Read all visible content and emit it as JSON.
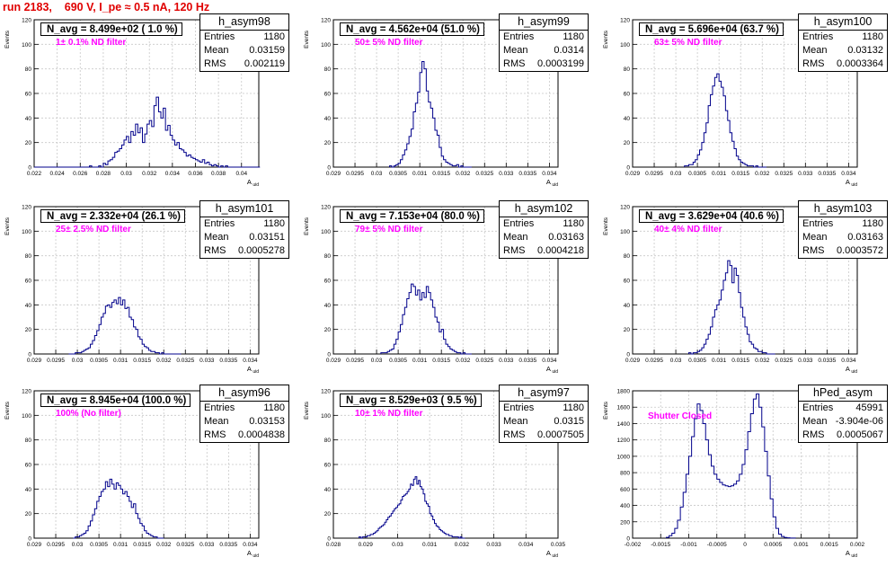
{
  "run_title": "run 2183,    690 V, I_pe ≈ 0.5 nA, 120 Hz",
  "colors": {
    "title": "#e00000",
    "histogram": "#00008b",
    "filter_label": "#ff00ff",
    "grid": "#c8c8c8"
  },
  "chart_data": [
    {
      "type": "histogram",
      "name": "h_asym98",
      "entries": "1180",
      "mean": "0.03159",
      "rms": "0.002119",
      "navg": "N_avg = 8.499e+02 ( 1.0 %)",
      "filter_label": "1± 0.1% ND filter",
      "ylabel": "Events",
      "xlabel": "A_uid",
      "xlim": [
        0.022,
        0.0415
      ],
      "ylim": [
        0,
        120
      ],
      "xticks": [
        "0.022",
        "0.024",
        "0.026",
        "0.028",
        "0.03",
        "0.032",
        "0.034",
        "0.036",
        "0.038",
        "0.04"
      ],
      "yticks": [
        "0",
        "20",
        "40",
        "60",
        "80",
        "100",
        "120"
      ],
      "bins_start": 0.022,
      "bin_width": 0.0002,
      "grid": true,
      "values": [
        0,
        0,
        0,
        0,
        0,
        0,
        0,
        0,
        0,
        0,
        0,
        0,
        0,
        0,
        0,
        0,
        0,
        0,
        0,
        0,
        0,
        0,
        0,
        0,
        1,
        0,
        0,
        0,
        1,
        0,
        3,
        2,
        5,
        6,
        8,
        12,
        13,
        15,
        18,
        22,
        25,
        20,
        29,
        26,
        35,
        28,
        32,
        20,
        27,
        35,
        38,
        33,
        50,
        57,
        45,
        40,
        48,
        30,
        34,
        26,
        22,
        18,
        20,
        15,
        14,
        12,
        9,
        10,
        8,
        7,
        6,
        5,
        4,
        6,
        3,
        4,
        2,
        1,
        2,
        1,
        0,
        1,
        0,
        1,
        0,
        0,
        0,
        0,
        0,
        0,
        0,
        0,
        0,
        0,
        0,
        0,
        0,
        0
      ]
    },
    {
      "type": "histogram",
      "name": "h_asym99",
      "entries": "1180",
      "mean": "0.0314",
      "rms": "0.0003199",
      "navg": "N_avg = 4.562e+04 (51.0 %)",
      "filter_label": "50± 5% ND filter",
      "ylabel": "Events",
      "xlabel": "A_uid",
      "xlim": [
        0.029,
        0.0342
      ],
      "ylim": [
        0,
        120
      ],
      "xticks": [
        "0.029",
        "0.0295",
        "0.03",
        "0.0305",
        "0.031",
        "0.0315",
        "0.032",
        "0.0325",
        "0.033",
        "0.0335",
        "0.034"
      ],
      "yticks": [
        "0",
        "20",
        "40",
        "60",
        "80",
        "100",
        "120"
      ],
      "bins_start": 0.0303,
      "bin_width": 5e-05,
      "grid": true,
      "values": [
        1,
        0,
        1,
        2,
        3,
        6,
        10,
        14,
        19,
        25,
        31,
        45,
        52,
        61,
        77,
        86,
        80,
        62,
        53,
        48,
        40,
        30,
        26,
        16,
        9,
        6,
        4,
        3,
        2,
        1,
        1,
        2,
        0,
        1,
        0,
        0,
        0,
        0
      ]
    },
    {
      "type": "histogram",
      "name": "h_asym100",
      "entries": "1180",
      "mean": "0.03132",
      "rms": "0.0003364",
      "navg": "N_avg = 5.696e+04 (63.7 %)",
      "filter_label": "63± 5% ND filter",
      "ylabel": "Events",
      "xlabel": "A_uid",
      "xlim": [
        0.029,
        0.0342
      ],
      "ylim": [
        0,
        120
      ],
      "xticks": [
        "0.029",
        "0.0295",
        "0.03",
        "0.0305",
        "0.031",
        "0.0315",
        "0.032",
        "0.0325",
        "0.033",
        "0.0335",
        "0.034"
      ],
      "yticks": [
        "0",
        "20",
        "40",
        "60",
        "80",
        "100",
        "120"
      ],
      "bins_start": 0.0302,
      "bin_width": 5e-05,
      "grid": true,
      "values": [
        1,
        1,
        2,
        2,
        4,
        6,
        10,
        14,
        20,
        28,
        36,
        50,
        59,
        66,
        73,
        76,
        70,
        65,
        58,
        46,
        38,
        28,
        21,
        15,
        9,
        6,
        4,
        3,
        2,
        1,
        1,
        1,
        0,
        1,
        0,
        0,
        0,
        0
      ]
    },
    {
      "type": "histogram",
      "name": "h_asym101",
      "entries": "1180",
      "mean": "0.03151",
      "rms": "0.0005278",
      "navg": "N_avg = 2.332e+04 (26.1 %)",
      "filter_label": "25± 2.5% ND filter",
      "ylabel": "Events",
      "xlabel": "A_uid",
      "xlim": [
        0.029,
        0.0342
      ],
      "ylim": [
        0,
        120
      ],
      "xticks": [
        "0.029",
        "0.0295",
        "0.03",
        "0.0305",
        "0.031",
        "0.0315",
        "0.032",
        "0.0325",
        "0.033",
        "0.0335",
        "0.034"
      ],
      "yticks": [
        "0",
        "20",
        "40",
        "60",
        "80",
        "100",
        "120"
      ],
      "bins_start": 0.0298,
      "bin_width": 5e-05,
      "grid": true,
      "values": [
        0,
        0,
        0,
        1,
        1,
        1,
        2,
        3,
        4,
        5,
        8,
        11,
        15,
        19,
        24,
        30,
        33,
        39,
        40,
        38,
        42,
        44,
        41,
        46,
        40,
        44,
        37,
        38,
        30,
        28,
        22,
        20,
        14,
        12,
        8,
        6,
        5,
        3,
        2,
        2,
        1,
        1,
        0,
        1,
        0,
        0,
        0,
        0,
        0,
        0,
        0,
        0
      ]
    },
    {
      "type": "histogram",
      "name": "h_asym102",
      "entries": "1180",
      "mean": "0.03163",
      "rms": "0.0004218",
      "navg": "N_avg = 7.153e+04 (80.0 %)",
      "filter_label": "79± 5% ND filter",
      "ylabel": "Events",
      "xlabel": "A_uid",
      "xlim": [
        0.029,
        0.0342
      ],
      "ylim": [
        0,
        120
      ],
      "xticks": [
        "0.029",
        "0.0295",
        "0.03",
        "0.0305",
        "0.031",
        "0.0315",
        "0.032",
        "0.0325",
        "0.033",
        "0.0335",
        "0.034"
      ],
      "yticks": [
        "0",
        "20",
        "40",
        "60",
        "80",
        "100",
        "120"
      ],
      "bins_start": 0.0301,
      "bin_width": 5e-05,
      "grid": true,
      "values": [
        1,
        1,
        1,
        2,
        3,
        4,
        8,
        12,
        18,
        24,
        32,
        38,
        45,
        50,
        57,
        55,
        48,
        52,
        44,
        50,
        46,
        55,
        50,
        44,
        38,
        30,
        26,
        18,
        20,
        12,
        8,
        6,
        4,
        3,
        2,
        1,
        1,
        0,
        1,
        0,
        0,
        0
      ]
    },
    {
      "type": "histogram",
      "name": "h_asym103",
      "entries": "1180",
      "mean": "0.03163",
      "rms": "0.0003572",
      "navg": "N_avg = 3.629e+04 (40.6 %)",
      "filter_label": "40± 4% ND filter",
      "ylabel": "Events",
      "xlabel": "A_uid",
      "xlim": [
        0.029,
        0.0342
      ],
      "ylim": [
        0,
        120
      ],
      "xticks": [
        "0.029",
        "0.0295",
        "0.03",
        "0.0305",
        "0.031",
        "0.0315",
        "0.032",
        "0.0325",
        "0.033",
        "0.0335",
        "0.034"
      ],
      "yticks": [
        "0",
        "20",
        "40",
        "60",
        "80",
        "100",
        "120"
      ],
      "bins_start": 0.0303,
      "bin_width": 5e-05,
      "grid": true,
      "values": [
        1,
        0,
        1,
        1,
        2,
        3,
        5,
        8,
        12,
        16,
        22,
        30,
        36,
        40,
        44,
        52,
        60,
        66,
        76,
        72,
        58,
        70,
        64,
        50,
        38,
        30,
        22,
        16,
        10,
        8,
        5,
        4,
        2,
        2,
        1,
        1,
        0,
        0,
        0,
        0
      ]
    },
    {
      "type": "histogram",
      "name": "h_asym96",
      "entries": "1180",
      "mean": "0.03153",
      "rms": "0.0004838",
      "navg": "N_avg = 8.945e+04 (100.0 %)",
      "filter_label": "100% (No filter)",
      "ylabel": "Events",
      "xlabel": "A_uid",
      "xlim": [
        0.029,
        0.0342
      ],
      "ylim": [
        0,
        120
      ],
      "xticks": [
        "0.029",
        "0.0295",
        "0.03",
        "0.0305",
        "0.031",
        "0.0315",
        "0.032",
        "0.0325",
        "0.033",
        "0.0335",
        "0.034"
      ],
      "yticks": [
        "0",
        "20",
        "40",
        "60",
        "80",
        "100",
        "120"
      ],
      "bins_start": 0.0299,
      "bin_width": 5e-05,
      "grid": true,
      "values": [
        0,
        1,
        1,
        2,
        3,
        4,
        6,
        10,
        14,
        19,
        24,
        30,
        34,
        38,
        40,
        46,
        42,
        48,
        44,
        40,
        45,
        43,
        40,
        36,
        38,
        34,
        30,
        25,
        28,
        20,
        16,
        12,
        10,
        6,
        4,
        3,
        2,
        1,
        1,
        0,
        0,
        0
      ]
    },
    {
      "type": "histogram",
      "name": "h_asym97",
      "entries": "1180",
      "mean": "0.0315",
      "rms": "0.0007505",
      "navg": "N_avg = 8.529e+03 ( 9.5 %)",
      "filter_label": "10± 1% ND filter",
      "ylabel": "Events",
      "xlabel": "A_uid",
      "xlim": [
        0.028,
        0.035
      ],
      "ylim": [
        0,
        120
      ],
      "xticks": [
        "0.028",
        "0.029",
        "0.03",
        "0.031",
        "0.032",
        "0.033",
        "0.034",
        "0.035"
      ],
      "yticks": [
        "0",
        "20",
        "40",
        "60",
        "80",
        "100",
        "120"
      ],
      "bins_start": 0.0288,
      "bin_width": 5e-05,
      "grid": true,
      "values": [
        1,
        0,
        1,
        1,
        1,
        2,
        2,
        3,
        3,
        4,
        5,
        6,
        8,
        9,
        10,
        11,
        13,
        15,
        17,
        18,
        20,
        22,
        24,
        25,
        27,
        28,
        31,
        34,
        35,
        36,
        38,
        40,
        44,
        43,
        48,
        50,
        44,
        47,
        42,
        40,
        36,
        30,
        28,
        26,
        20,
        18,
        15,
        12,
        10,
        9,
        7,
        6,
        5,
        4,
        3,
        3,
        2,
        2,
        1,
        1,
        1,
        1,
        0,
        1,
        0,
        0
      ]
    },
    {
      "type": "histogram",
      "name": "hPed_asym",
      "entries": "45991",
      "mean": "-3.904e-06",
      "rms": "0.0005067",
      "navg": "",
      "filter_label": "Shutter Closed",
      "ylabel": "Events",
      "xlabel": "A_uid",
      "xlim": [
        -0.002,
        0.002
      ],
      "ylim": [
        0,
        1800
      ],
      "xticks": [
        "-0.002",
        "-0.0015",
        "-0.001",
        "-0.0005",
        "0",
        "0.0005",
        "0.001",
        "0.0015",
        "0.002"
      ],
      "yticks": [
        "0",
        "200",
        "400",
        "600",
        "800",
        "1000",
        "1200",
        "1400",
        "1600",
        "1800"
      ],
      "bins_start": -0.0014,
      "bin_width": 5e-05,
      "grid": true,
      "values": [
        10,
        30,
        60,
        120,
        220,
        380,
        560,
        780,
        1000,
        1240,
        1460,
        1640,
        1560,
        1400,
        1200,
        1020,
        880,
        780,
        720,
        680,
        650,
        640,
        630,
        640,
        660,
        700,
        780,
        900,
        1080,
        1300,
        1520,
        1700,
        1760,
        1600,
        1360,
        1060,
        760,
        480,
        260,
        120,
        50,
        20,
        8,
        4,
        2,
        1
      ]
    }
  ]
}
